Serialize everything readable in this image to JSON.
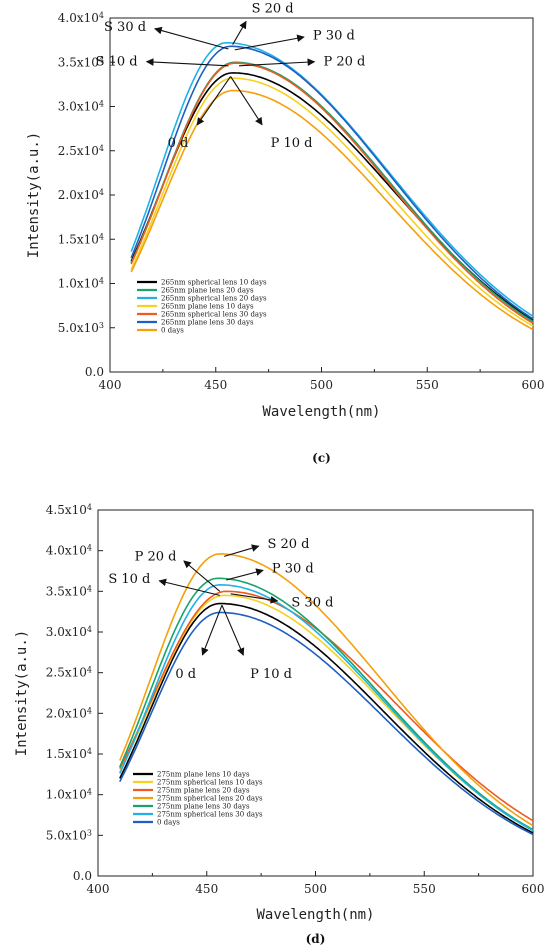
{
  "chart_data": [
    {
      "type": "line",
      "panel_label": "(c)",
      "xlabel": "Wavelength(nm)",
      "ylabel": "Intensity(a.u.)",
      "xlim": [
        400,
        600
      ],
      "ylim": [
        0,
        40000
      ],
      "x_ticks": [
        400,
        450,
        500,
        550,
        600
      ],
      "y_ticks": [
        {
          "v": 0,
          "label": "0.0"
        },
        {
          "v": 5000,
          "label": "5.0x10^3"
        },
        {
          "v": 10000,
          "label": "1.0x10^4"
        },
        {
          "v": 15000,
          "label": "1.5x10^4"
        },
        {
          "v": 20000,
          "label": "2.0x10^4"
        },
        {
          "v": 25000,
          "label": "2.5x10^4"
        },
        {
          "v": 30000,
          "label": "3.0x10^4"
        },
        {
          "v": 35000,
          "label": "3.5x10^4"
        },
        {
          "v": 40000,
          "label": "4.0x10^4"
        }
      ],
      "grid": false,
      "legend_position": "bottom-left",
      "series": [
        {
          "name": "265nm spherical lens 10 days",
          "color": "#000000",
          "peak_x": 458,
          "peak_y": 33800,
          "start_y": 12500,
          "end_y": 5900
        },
        {
          "name": "265nm plane lens 20 days",
          "color": "#18a36a",
          "peak_x": 459,
          "peak_y": 35000,
          "start_y": 12300,
          "end_y": 5700
        },
        {
          "name": "265nm spherical lens 20 days",
          "color": "#1fb2e8",
          "peak_x": 455,
          "peak_y": 37200,
          "start_y": 13600,
          "end_y": 6300
        },
        {
          "name": "265nm plane lens 10 days",
          "color": "#f4d21f",
          "peak_x": 458,
          "peak_y": 33200,
          "start_y": 11600,
          "end_y": 5200
        },
        {
          "name": "265nm spherical lens 30 days",
          "color": "#ee5b22",
          "peak_x": 459,
          "peak_y": 34900,
          "start_y": 12200,
          "end_y": 5500
        },
        {
          "name": "265nm plane lens 30 days",
          "color": "#1f5fbf",
          "peak_x": 457,
          "peak_y": 36800,
          "start_y": 12900,
          "end_y": 6000
        },
        {
          "name": "0 days",
          "color": "#f5a00b",
          "peak_x": 458,
          "peak_y": 31800,
          "start_y": 11300,
          "end_y": 4800
        }
      ],
      "annotations": [
        {
          "label": "S 20 d",
          "x": 458,
          "y": 37000,
          "tx": 466,
          "ty": 40300
        },
        {
          "label": "S 30 d",
          "x": 456,
          "y": 36500,
          "tx": 418,
          "ty": 39000
        },
        {
          "label": "P 30 d",
          "x": 459,
          "y": 36400,
          "tx": 495,
          "ty": 38000
        },
        {
          "label": "S 10 d",
          "x": 456,
          "y": 34600,
          "tx": 414,
          "ty": 35100
        },
        {
          "label": "P 20 d",
          "x": 461,
          "y": 34600,
          "tx": 500,
          "ty": 35100
        },
        {
          "label": "0 d",
          "x": 457,
          "y": 33400,
          "tx": 438,
          "ty": 26800
        },
        {
          "label": "P 10 d",
          "x": 457,
          "y": 33400,
          "tx": 475,
          "ty": 26800
        }
      ]
    },
    {
      "type": "line",
      "panel_label": "(d)",
      "xlabel": "Wavelength(nm)",
      "ylabel": "Intensity(a.u.)",
      "xlim": [
        400,
        600
      ],
      "ylim": [
        0,
        45000
      ],
      "x_ticks": [
        400,
        450,
        500,
        550,
        600
      ],
      "y_ticks": [
        {
          "v": 0,
          "label": "0.0"
        },
        {
          "v": 5000,
          "label": "5.0x10^3"
        },
        {
          "v": 10000,
          "label": "1.0x10^4"
        },
        {
          "v": 15000,
          "label": "1.5x10^4"
        },
        {
          "v": 20000,
          "label": "2.0x10^4"
        },
        {
          "v": 25000,
          "label": "2.5x10^4"
        },
        {
          "v": 30000,
          "label": "3.0x10^4"
        },
        {
          "v": 35000,
          "label": "3.5x10^4"
        },
        {
          "v": 40000,
          "label": "4.0x10^4"
        },
        {
          "v": 45000,
          "label": "4.5x10^4"
        }
      ],
      "grid": false,
      "legend_position": "bottom-left",
      "series": [
        {
          "name": "275nm plane lens 10 days",
          "color": "#000000",
          "peak_x": 456,
          "peak_y": 33500,
          "start_y": 12000,
          "end_y": 5300
        },
        {
          "name": "275nm spherical lens 10 days",
          "color": "#f4d21f",
          "peak_x": 458,
          "peak_y": 34500,
          "start_y": 12800,
          "end_y": 5600
        },
        {
          "name": "275nm plane lens 20 days",
          "color": "#ee5b22",
          "peak_x": 459,
          "peak_y": 35000,
          "start_y": 13200,
          "end_y": 6800
        },
        {
          "name": "275nm spherical lens 20 days",
          "color": "#f5a00b",
          "peak_x": 456,
          "peak_y": 39600,
          "start_y": 14200,
          "end_y": 6200
        },
        {
          "name": "275nm plane lens 30 days",
          "color": "#18a36a",
          "peak_x": 455,
          "peak_y": 36600,
          "start_y": 13400,
          "end_y": 5700
        },
        {
          "name": "275nm spherical lens 30 days",
          "color": "#1fb2e8",
          "peak_x": 456,
          "peak_y": 35800,
          "start_y": 12600,
          "end_y": 5600
        },
        {
          "name": "0 days",
          "color": "#1f5fbf",
          "peak_x": 456,
          "peak_y": 32400,
          "start_y": 11600,
          "end_y": 5100
        }
      ],
      "annotations": [
        {
          "label": "S 20 d",
          "x": 458,
          "y": 39300,
          "tx": 477,
          "ty": 40800
        },
        {
          "label": "P 20 d",
          "x": 456,
          "y": 35000,
          "tx": 437,
          "ty": 39300
        },
        {
          "label": "P 30 d",
          "x": 459,
          "y": 36400,
          "tx": 479,
          "ty": 37800
        },
        {
          "label": "S 10 d",
          "x": 456,
          "y": 34500,
          "tx": 425,
          "ty": 36500
        },
        {
          "label": "S 30 d",
          "x": 461,
          "y": 34700,
          "tx": 488,
          "ty": 33600
        },
        {
          "label": "0 d",
          "x": 457,
          "y": 33300,
          "tx": 446,
          "ty": 25800
        },
        {
          "label": "P 10 d",
          "x": 457,
          "y": 33300,
          "tx": 469,
          "ty": 25800
        }
      ]
    }
  ]
}
